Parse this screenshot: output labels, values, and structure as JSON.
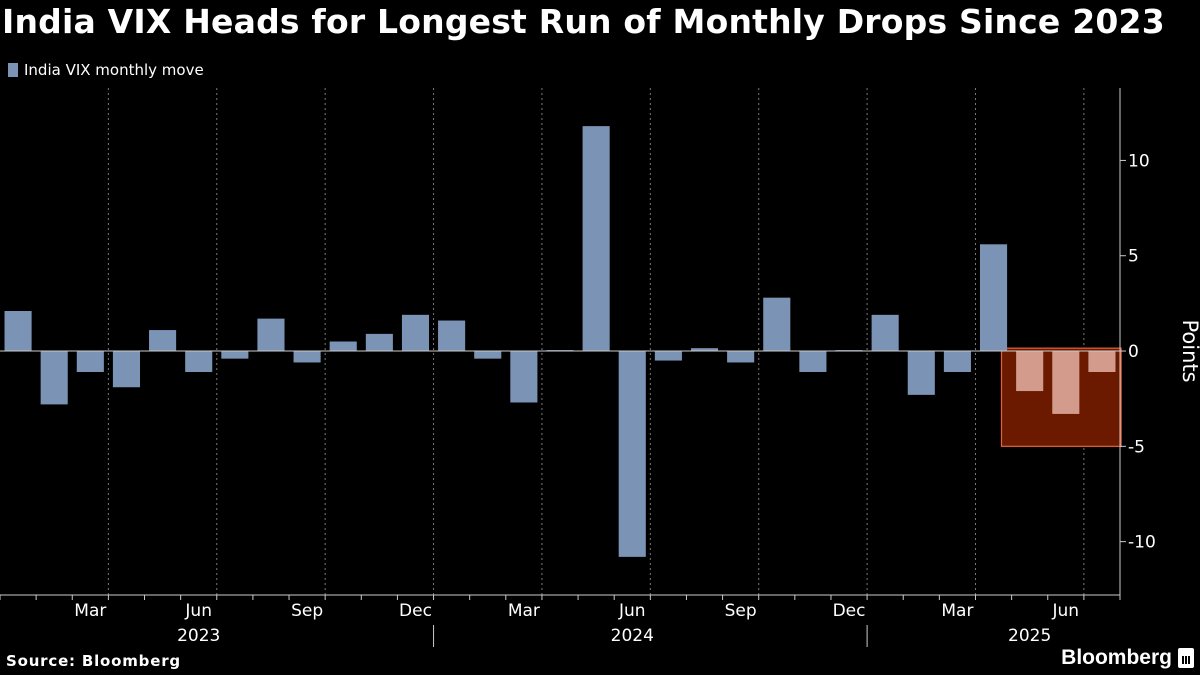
{
  "header": {
    "title": "India VIX Heads for Longest Run of Monthly Drops Since 2023"
  },
  "legend": {
    "label": "India VIX monthly move",
    "color": "#7b93b5"
  },
  "footer": {
    "source": "Source: Bloomberg",
    "brand": "Bloomberg"
  },
  "colors": {
    "background": "#000000",
    "bar": "#7b93b5",
    "highlight_fill": "#6b1a00",
    "highlight_border": "#e8613c",
    "highlight_bar": "#d39b8b",
    "grid": "#7a7a7a",
    "text": "#ffffff"
  },
  "chart_data": {
    "type": "bar",
    "ylabel": "Points",
    "ylim": [
      -12.8,
      13.8
    ],
    "yticks": [
      10,
      5,
      0,
      -5,
      -10
    ],
    "ytick_labels": [
      "10",
      "5",
      "0",
      "-5",
      "-10"
    ],
    "grid": "vertical dotted at quarter starts",
    "legend_position": "top-left",
    "categories": [
      "2023-01",
      "2023-02",
      "2023-03",
      "2023-04",
      "2023-05",
      "2023-06",
      "2023-07",
      "2023-08",
      "2023-09",
      "2023-10",
      "2023-11",
      "2023-12",
      "2024-01",
      "2024-02",
      "2024-03",
      "2024-04",
      "2024-05",
      "2024-06",
      "2024-07",
      "2024-08",
      "2024-09",
      "2024-10",
      "2024-11",
      "2024-12",
      "2025-01",
      "2025-02",
      "2025-03",
      "2025-04",
      "2025-05",
      "2025-06",
      "2025-07"
    ],
    "series": [
      {
        "name": "India VIX monthly move",
        "values": [
          2.1,
          -2.8,
          -1.1,
          -1.9,
          1.1,
          -1.1,
          -0.4,
          1.7,
          -0.6,
          0.5,
          0.9,
          1.9,
          1.6,
          -0.4,
          -2.7,
          0.05,
          11.8,
          -10.8,
          -0.5,
          0.15,
          -0.6,
          2.8,
          -1.1,
          0.05,
          1.9,
          -2.3,
          -1.1,
          5.6,
          -2.1,
          -3.3,
          -1.1
        ]
      }
    ],
    "highlight_range": {
      "from": "2025-05",
      "to": "2025-07",
      "y_from": -5,
      "y_to": 0.15
    },
    "x_month_labels": [
      {
        "month": "2023-03",
        "label": "Mar"
      },
      {
        "month": "2023-06",
        "label": "Jun"
      },
      {
        "month": "2023-09",
        "label": "Sep"
      },
      {
        "month": "2023-12",
        "label": "Dec"
      },
      {
        "month": "2024-03",
        "label": "Mar"
      },
      {
        "month": "2024-06",
        "label": "Jun"
      },
      {
        "month": "2024-09",
        "label": "Sep"
      },
      {
        "month": "2024-12",
        "label": "Dec"
      },
      {
        "month": "2025-03",
        "label": "Mar"
      },
      {
        "month": "2025-06",
        "label": "Jun"
      }
    ],
    "x_year_labels": [
      {
        "month": "2023-06",
        "label": "2023"
      },
      {
        "month": "2024-06",
        "label": "2024"
      },
      {
        "month": "2025-05",
        "label": "2025"
      }
    ]
  }
}
